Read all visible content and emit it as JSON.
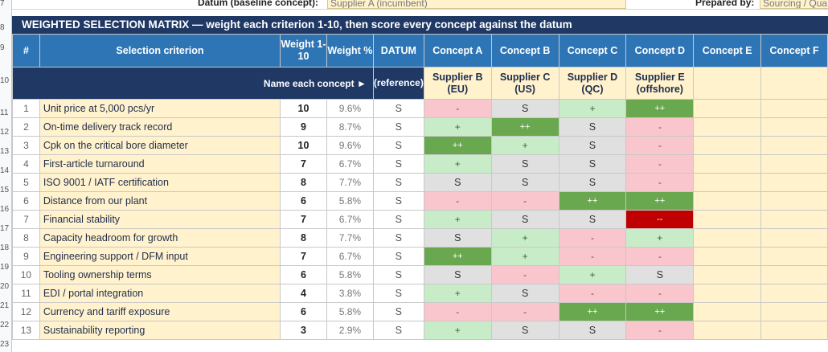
{
  "header": {
    "datum_label": "Datum (baseline concept):",
    "datum_value": "Supplier A (incumbent)",
    "prepared_label": "Prepared by:",
    "prepared_value": "Sourcing / Qua"
  },
  "title": "WEIGHTED SELECTION MATRIX  —  weight each criterion 1-10, then score every concept against the datum",
  "row_numbers": [
    "7",
    "8",
    "9",
    "10",
    "11",
    "12",
    "13",
    "14",
    "15",
    "16",
    "17",
    "18",
    "19",
    "20",
    "21",
    "22",
    "23"
  ],
  "columns": {
    "num": "#",
    "criterion": "Selection criterion",
    "weight": "Weight 1-10",
    "weight_pct": "Weight %",
    "datum": "DATUM",
    "concepts": [
      "Concept A",
      "Concept B",
      "Concept C",
      "Concept D",
      "Concept E",
      "Concept F"
    ]
  },
  "subheader": {
    "name_each": "Name each concept  ►",
    "datum_ref": "(reference)",
    "suppliers": [
      "Supplier B (EU)",
      "Supplier C (US)",
      "Supplier D (QC)",
      "Supplier E (offshore)",
      "",
      ""
    ]
  },
  "rows": [
    {
      "n": "1",
      "criterion": "Unit price at 5,000 pcs/yr",
      "weight": "10",
      "pct": "9.6%",
      "datum": "S",
      "scores": [
        "-",
        "S",
        "+",
        "++",
        "",
        ""
      ]
    },
    {
      "n": "2",
      "criterion": "On-time delivery track record",
      "weight": "9",
      "pct": "8.7%",
      "datum": "S",
      "scores": [
        "+",
        "++",
        "S",
        "-",
        "",
        ""
      ]
    },
    {
      "n": "3",
      "criterion": "Cpk on the critical bore diameter",
      "weight": "10",
      "pct": "9.6%",
      "datum": "S",
      "scores": [
        "++",
        "+",
        "S",
        "-",
        "",
        ""
      ]
    },
    {
      "n": "4",
      "criterion": "First-article turnaround",
      "weight": "7",
      "pct": "6.7%",
      "datum": "S",
      "scores": [
        "+",
        "S",
        "S",
        "-",
        "",
        ""
      ]
    },
    {
      "n": "5",
      "criterion": "ISO 9001 / IATF certification",
      "weight": "8",
      "pct": "7.7%",
      "datum": "S",
      "scores": [
        "S",
        "S",
        "S",
        "-",
        "",
        ""
      ]
    },
    {
      "n": "6",
      "criterion": "Distance from our plant",
      "weight": "6",
      "pct": "5.8%",
      "datum": "S",
      "scores": [
        "-",
        "-",
        "++",
        "++",
        "",
        ""
      ]
    },
    {
      "n": "7",
      "criterion": "Financial stability",
      "weight": "7",
      "pct": "6.7%",
      "datum": "S",
      "scores": [
        "+",
        "S",
        "S",
        "--",
        "",
        ""
      ]
    },
    {
      "n": "8",
      "criterion": "Capacity headroom for growth",
      "weight": "8",
      "pct": "7.7%",
      "datum": "S",
      "scores": [
        "S",
        "+",
        "-",
        "+",
        "",
        ""
      ]
    },
    {
      "n": "9",
      "criterion": "Engineering support / DFM input",
      "weight": "7",
      "pct": "6.7%",
      "datum": "S",
      "scores": [
        "++",
        "+",
        "-",
        "-",
        "",
        ""
      ]
    },
    {
      "n": "10",
      "criterion": "Tooling ownership terms",
      "weight": "6",
      "pct": "5.8%",
      "datum": "S",
      "scores": [
        "S",
        "-",
        "+",
        "S",
        "",
        ""
      ]
    },
    {
      "n": "11",
      "criterion": "EDI / portal integration",
      "weight": "4",
      "pct": "3.8%",
      "datum": "S",
      "scores": [
        "+",
        "S",
        "-",
        "-",
        "",
        ""
      ]
    },
    {
      "n": "12",
      "criterion": "Currency and tariff exposure",
      "weight": "6",
      "pct": "5.8%",
      "datum": "S",
      "scores": [
        "-",
        "-",
        "++",
        "++",
        "",
        ""
      ]
    },
    {
      "n": "13",
      "criterion": "Sustainability reporting",
      "weight": "3",
      "pct": "2.9%",
      "datum": "S",
      "scores": [
        "+",
        "S",
        "S",
        "-",
        "",
        ""
      ]
    }
  ],
  "colors": {
    "title_bg": "#1f3864",
    "header_bg": "#2e75b6",
    "input_bg": "#fff2cc",
    "same": "#e0e0e0",
    "much_better": "#6aa84f",
    "better": "#c9ecc8",
    "worse": "#f8c6cc",
    "much_worse": "#c00000"
  }
}
